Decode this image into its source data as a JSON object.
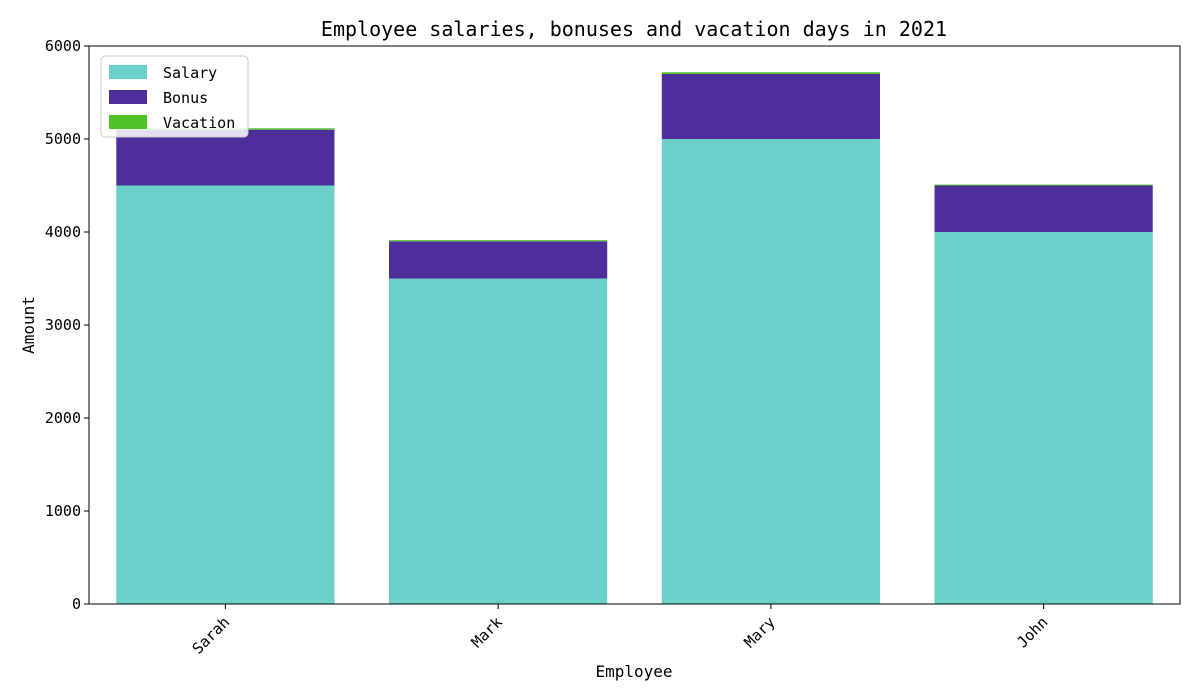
{
  "chart_data": {
    "type": "bar",
    "stacked": true,
    "title": "Employee salaries, bonuses and vacation days in 2021",
    "xlabel": "Employee",
    "ylabel": "Amount",
    "categories": [
      "Sarah",
      "Mark",
      "Mary",
      "John"
    ],
    "series": [
      {
        "name": "Salary",
        "color": "#6bcfca",
        "values": [
          4500,
          3500,
          5000,
          4000
        ]
      },
      {
        "name": "Bonus",
        "color": "#4e2e9a",
        "values": [
          600,
          400,
          700,
          500
        ]
      },
      {
        "name": "Vacation",
        "color": "#4fc227",
        "values": [
          15,
          12,
          18,
          10
        ]
      }
    ],
    "ylim": [
      0,
      6000
    ],
    "yticks": [
      0,
      1000,
      2000,
      3000,
      4000,
      5000,
      6000
    ],
    "xtick_rotation": 45,
    "grid": false,
    "legend": "upper-left"
  }
}
